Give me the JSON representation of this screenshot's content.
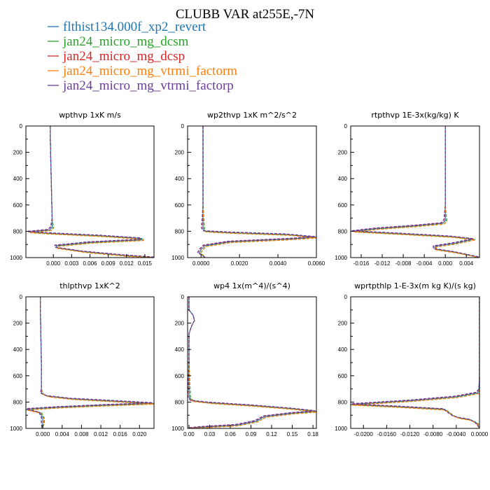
{
  "figure_title": "CLUBB VAR at255E,-7N",
  "legend": [
    {
      "label": "flthist134.000f_xp2_revert",
      "color": "#1f77b4"
    },
    {
      "label": "jan24_micro_mg_dcsm",
      "color": "#2ca02c"
    },
    {
      "label": "jan24_micro_mg_dcsp",
      "color": "#d62728"
    },
    {
      "label": "jan24_micro_mg_vtrmi_factorm",
      "color": "#ff7f0e"
    },
    {
      "label": "jan24_micro_mg_vtrmi_factorp",
      "color": "#6a3d9a"
    }
  ],
  "chart_data": [
    {
      "type": "line",
      "title": "wpthvp   1xK m/s",
      "xlim": [
        -0.0045,
        0.0165
      ],
      "ylim": [
        1000,
        0
      ],
      "xticks": [
        0.0,
        0.003,
        0.006,
        0.009,
        0.012,
        0.015
      ],
      "xtick_labels": [
        "0.000",
        "0.003",
        "0.006",
        "0.009",
        "0.012",
        "0.015"
      ],
      "yticks": [
        0,
        200,
        400,
        600,
        800,
        1000
      ],
      "ytick_labels": [
        "0",
        "200",
        "400",
        "600",
        "800",
        "1000"
      ],
      "profile": [
        [
          -0.0005,
          0
        ],
        [
          -0.0005,
          100
        ],
        [
          -0.0004,
          300
        ],
        [
          -0.0003,
          500
        ],
        [
          -0.0002,
          700
        ],
        [
          -0.0002,
          770
        ],
        [
          -0.0006,
          790
        ],
        [
          -0.004,
          805
        ],
        [
          -0.001,
          815
        ],
        [
          0.008,
          835
        ],
        [
          0.0145,
          855
        ],
        [
          0.0145,
          865
        ],
        [
          0.006,
          885
        ],
        [
          0.0005,
          910
        ],
        [
          0.0005,
          925
        ],
        [
          0.005,
          955
        ],
        [
          0.012,
          985
        ],
        [
          0.0165,
          1000
        ]
      ]
    },
    {
      "type": "line",
      "title": "wp2thvp   1xK m^2/s^2",
      "xlim": [
        -0.0007,
        0.006
      ],
      "ylim": [
        1000,
        0
      ],
      "xticks": [
        0.0,
        0.002,
        0.004,
        0.006
      ],
      "xtick_labels": [
        "0.0000",
        "0.0020",
        "0.0040",
        "0.0060"
      ],
      "yticks": [
        0,
        200,
        400,
        600,
        800,
        1000
      ],
      "ytick_labels": [
        "0",
        "200",
        "400",
        "600",
        "800",
        "1000"
      ],
      "profile": [
        [
          0.0001,
          0
        ],
        [
          0.0001,
          300
        ],
        [
          0.0001,
          600
        ],
        [
          0.0001,
          780
        ],
        [
          0.0002,
          800
        ],
        [
          0.0015,
          810
        ],
        [
          0.0045,
          825
        ],
        [
          0.006,
          845
        ],
        [
          0.0045,
          860
        ],
        [
          0.0015,
          880
        ],
        [
          0.0002,
          910
        ],
        [
          0.0,
          940
        ],
        [
          -0.0001,
          965
        ],
        [
          0.0001,
          985
        ],
        [
          0.0002,
          1000
        ]
      ]
    },
    {
      "type": "line",
      "title": "rtpthvp   1E-3x(kg/kg) K",
      "xlim": [
        -0.018,
        0.0065
      ],
      "ylim": [
        1000,
        0
      ],
      "xticks": [
        -0.016,
        -0.012,
        -0.008,
        -0.004,
        0.0,
        0.004
      ],
      "xtick_labels": [
        "-0.016",
        "-0.012",
        "-0.008",
        "-0.004",
        "0.000",
        "0.004"
      ],
      "yticks": [
        0,
        200,
        400,
        600,
        800,
        1000
      ],
      "ytick_labels": [
        "0",
        "200",
        "400",
        "600",
        "800",
        "1000"
      ],
      "profile": [
        [
          0.0,
          0
        ],
        [
          0.0,
          300
        ],
        [
          0.0,
          600
        ],
        [
          0.0,
          720
        ],
        [
          -0.0005,
          740
        ],
        [
          -0.006,
          760
        ],
        [
          -0.013,
          780
        ],
        [
          -0.0175,
          800
        ],
        [
          -0.008,
          820
        ],
        [
          0.001,
          840
        ],
        [
          0.0055,
          860
        ],
        [
          0.002,
          890
        ],
        [
          -0.002,
          915
        ],
        [
          -0.002,
          935
        ],
        [
          0.002,
          960
        ],
        [
          0.0065,
          1000
        ]
      ]
    },
    {
      "type": "line",
      "title": "thlpthvp   1xK^2",
      "xlim": [
        -0.0035,
        0.023
      ],
      "ylim": [
        1000,
        0
      ],
      "xticks": [
        0.0,
        0.004,
        0.008,
        0.012,
        0.016,
        0.02
      ],
      "xtick_labels": [
        "0.000",
        "0.004",
        "0.008",
        "0.012",
        "0.016",
        "0.020"
      ],
      "yticks": [
        0,
        200,
        400,
        600,
        800,
        1000
      ],
      "ytick_labels": [
        "0",
        "200",
        "400",
        "600",
        "800",
        "1000"
      ],
      "profile": [
        [
          -0.0005,
          0
        ],
        [
          -0.0005,
          100
        ],
        [
          -0.0004,
          300
        ],
        [
          -0.0003,
          500
        ],
        [
          -0.0003,
          700
        ],
        [
          -0.0002,
          735
        ],
        [
          0.001,
          755
        ],
        [
          0.006,
          775
        ],
        [
          0.016,
          795
        ],
        [
          0.023,
          810
        ],
        [
          0.012,
          825
        ],
        [
          0.003,
          840
        ],
        [
          -0.0035,
          855
        ],
        [
          -0.0005,
          880
        ],
        [
          0.0,
          920
        ],
        [
          0.0,
          960
        ],
        [
          -0.0002,
          1000
        ]
      ]
    },
    {
      "type": "line",
      "title": "wp4   1x(m^4)/(s^4)",
      "xlim": [
        -0.002,
        0.185
      ],
      "ylim": [
        1000,
        0
      ],
      "xticks": [
        0.0,
        0.03,
        0.06,
        0.09,
        0.12,
        0.15,
        0.18
      ],
      "xtick_labels": [
        "0.00",
        "0.03",
        "0.06",
        "0.09",
        "0.12",
        "0.15",
        "0.18"
      ],
      "yticks": [
        0,
        200,
        400,
        600,
        800,
        1000
      ],
      "ytick_labels": [
        "0",
        "200",
        "400",
        "600",
        "800",
        "1000"
      ],
      "profile": [
        [
          0.0,
          0
        ],
        [
          0.0,
          100
        ],
        [
          0.006,
          140
        ],
        [
          0.008,
          180
        ],
        [
          0.004,
          220
        ],
        [
          0.0,
          280
        ],
        [
          0.0,
          500
        ],
        [
          0.0,
          760
        ],
        [
          0.004,
          790
        ],
        [
          0.03,
          805
        ],
        [
          0.09,
          825
        ],
        [
          0.15,
          850
        ],
        [
          0.185,
          870
        ],
        [
          0.15,
          885
        ],
        [
          0.11,
          910
        ],
        [
          0.098,
          945
        ],
        [
          0.07,
          975
        ],
        [
          0.02,
          990
        ],
        [
          0.0,
          1000
        ]
      ]
    },
    {
      "type": "line",
      "title": "wprtpthlp   1-E-3x(m kg K)/(s kg)",
      "xlim": [
        -0.0222,
        0.0
      ],
      "ylim": [
        1000,
        0
      ],
      "xticks": [
        -0.02,
        -0.016,
        -0.012,
        -0.008,
        -0.004,
        0.0
      ],
      "xtick_labels": [
        "-0.0200",
        "-0.0160",
        "-0.0120",
        "-0.0080",
        "-0.0040",
        "0.0000"
      ],
      "yticks": [
        0,
        200,
        400,
        600,
        800,
        1000
      ],
      "ytick_labels": [
        "0",
        "200",
        "400",
        "600",
        "800",
        "1000"
      ],
      "profile": [
        [
          0.0,
          0
        ],
        [
          0.0,
          300
        ],
        [
          0.0,
          600
        ],
        [
          -0.0001,
          700
        ],
        [
          -0.0003,
          730
        ],
        [
          -0.004,
          760
        ],
        [
          -0.012,
          790
        ],
        [
          -0.0222,
          818
        ],
        [
          -0.014,
          835
        ],
        [
          -0.006,
          855
        ],
        [
          -0.0053,
          880
        ],
        [
          -0.0045,
          905
        ],
        [
          -0.0035,
          920
        ],
        [
          -0.0015,
          935
        ],
        [
          -0.0005,
          960
        ],
        [
          0.0,
          1000
        ]
      ]
    }
  ]
}
